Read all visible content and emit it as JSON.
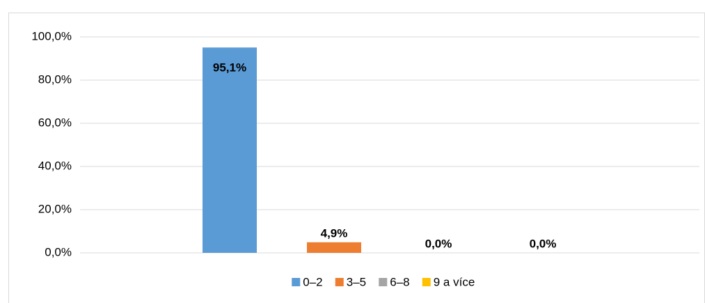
{
  "chart_data": {
    "type": "bar",
    "categories": [
      null
    ],
    "series": [
      {
        "name": "0–2",
        "color": "#5b9bd5",
        "values": [
          95.1
        ],
        "value_labels": [
          "95,1%"
        ]
      },
      {
        "name": "3–5",
        "color": "#ed7d31",
        "values": [
          4.9
        ],
        "value_labels": [
          "4,9%"
        ]
      },
      {
        "name": "6–8",
        "color": "#a5a5a5",
        "values": [
          0
        ],
        "value_labels": [
          "0,0%"
        ]
      },
      {
        "name": "9 a více",
        "color": "#ffc000",
        "values": [
          0
        ],
        "value_labels": [
          "0,0%"
        ]
      }
    ],
    "ylim": [
      0,
      100
    ],
    "yticks": [
      {
        "value": 0,
        "label": "0,0%"
      },
      {
        "value": 20,
        "label": "20,0%"
      },
      {
        "value": 40,
        "label": "40,0%"
      },
      {
        "value": 60,
        "label": "60,0%"
      },
      {
        "value": 80,
        "label": "80,0%"
      },
      {
        "value": 100,
        "label": "100,0%"
      }
    ],
    "grid": true,
    "legend": "bottom"
  }
}
